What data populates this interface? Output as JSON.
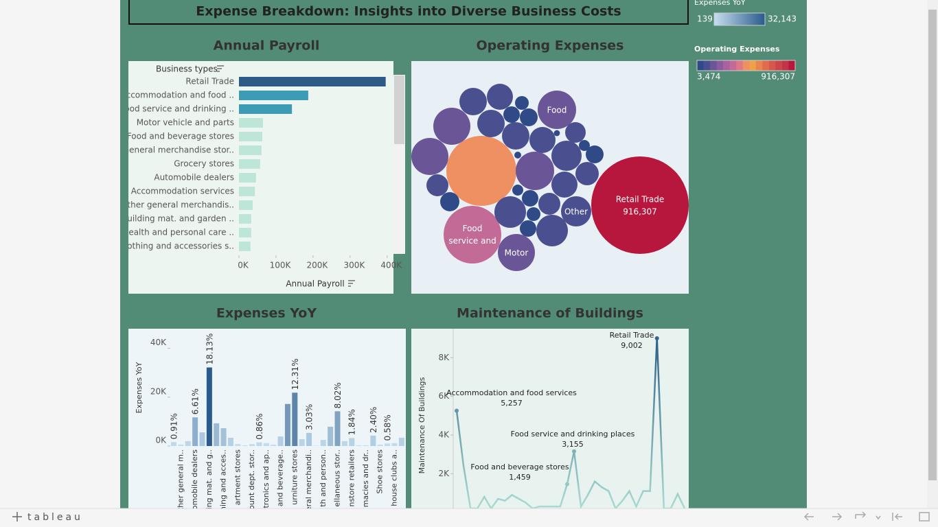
{
  "dashboard": {
    "title": "Expense Breakdown: Insights into Diverse Business Costs",
    "legends": [
      {
        "title": "Expenses YoY",
        "min": 139,
        "max": {
          "value": 32143,
          "label": "32,143"
        },
        "colors": [
          "#c6dfef",
          "#2b5a8c"
        ]
      },
      {
        "title": "Operating Expenses",
        "min": {
          "value": 3474,
          "label": "3,474"
        },
        "max": {
          "value": 916307,
          "label": "916,307"
        },
        "colors": [
          "#2f4a87",
          "#4a4f8f",
          "#6a5597",
          "#8a5c9e",
          "#a8639f",
          "#c36b97",
          "#dc788a",
          "#ef9063",
          "#f0a04a",
          "#e9844f",
          "#e06c4d",
          "#d6574b",
          "#cc4549",
          "#c23546",
          "#b8173d"
        ]
      }
    ]
  },
  "chart_data": [
    {
      "type": "hbar",
      "title": "Annual Payroll",
      "category_label": "Business types",
      "x_label": "Annual Payroll",
      "categories": [
        "Retail Trade",
        "Accommodation and food ..",
        "Food service and drinking ..",
        "Motor vehicle and parts",
        "Food and beverage stores",
        "General merchandise stor..",
        "Grocery stores",
        "Automobile dealers",
        "Accommodation services",
        "Other general merchandis..",
        "Building mat. and garden ..",
        "Health and personal care ..",
        "Clothing and accessories s.."
      ],
      "values": [
        396000,
        187000,
        143000,
        65000,
        63000,
        61000,
        57000,
        46000,
        43000,
        37000,
        33000,
        33000,
        31000
      ],
      "colors": [
        "#2d5a87",
        "#3d9bb6",
        "#3d9bb6",
        "#bde6d8",
        "#bde6d8",
        "#bde6d8",
        "#bde6d8",
        "#bde6d8",
        "#bde6d8",
        "#bde6d8",
        "#bde6d8",
        "#bde6d8",
        "#bde6d8"
      ],
      "xlim": [
        0,
        417000
      ],
      "xticks": [
        {
          "value": 0,
          "label": "0K"
        },
        {
          "value": 100000,
          "label": "100K"
        },
        {
          "value": 200000,
          "label": "200K"
        },
        {
          "value": 300000,
          "label": "300K"
        },
        {
          "value": 400000,
          "label": "400K"
        }
      ]
    },
    {
      "type": "bubble",
      "title": "Operating Expenses",
      "categories": [
        "Retail Trade",
        null,
        "Food service and",
        "Food",
        "Motor",
        "Other",
        null,
        null,
        null,
        null,
        null,
        null,
        null,
        null,
        null,
        null,
        null,
        null,
        null,
        null,
        null,
        null,
        null,
        null,
        null,
        null,
        null,
        null,
        null,
        null,
        null,
        null,
        null,
        null
      ],
      "values": [
        916307,
        472800,
        320600,
        142500,
        132500,
        88000,
        132500,
        132500,
        72700,
        65600,
        72700,
        26200,
        18200,
        30700,
        72700,
        65600,
        142500,
        88000,
        40900,
        11600,
        30700,
        52500,
        65600,
        3474,
        4500,
        46500,
        35600,
        96200,
        11600,
        26200,
        46500,
        18200,
        26200,
        96200
      ],
      "value_labels": [
        "916,307",
        null,
        null,
        null,
        null,
        null,
        null,
        null,
        null,
        null,
        null,
        null,
        null,
        null,
        null,
        null,
        null,
        null,
        null,
        null,
        null,
        null,
        null,
        null,
        null,
        null,
        null,
        null,
        null,
        null,
        null,
        null,
        null,
        null
      ]
    },
    {
      "type": "bar",
      "title": "Expenses YoY",
      "y_label": "Expenses YoY",
      "categories": [
        null,
        "ther general m..",
        null,
        "omobile dealers",
        null,
        "ing mat. and g..",
        null,
        "hing and acces..",
        null,
        "artment stores",
        null,
        "ount dept. stor..",
        null,
        "tronics and ap..",
        null,
        "and beverage..",
        null,
        "urniture stores",
        null,
        "eral merchandi..",
        null,
        "th and person..",
        null,
        "ellaneous stor..",
        null,
        "nstore retailers",
        null,
        "macies and dr..",
        null,
        "Shoe stores",
        null,
        "house clubs a..",
        null
      ],
      "values": [
        1613,
        600,
        2000,
        11719,
        5600,
        32143,
        9300,
        7300,
        3400,
        800,
        300,
        800,
        1525,
        1200,
        600,
        3900,
        17200,
        21825,
        2800,
        5372,
        139,
        2500,
        7900,
        14219,
        2000,
        3262,
        300,
        300,
        4255,
        600,
        1028,
        1200,
        3400
      ],
      "annotations": [
        "0.91%",
        null,
        null,
        "6.61%",
        null,
        "18.13%",
        null,
        null,
        null,
        null,
        null,
        null,
        "0.86%",
        null,
        null,
        null,
        null,
        "12.31%",
        null,
        "3.03%",
        null,
        null,
        null,
        "8.02%",
        null,
        "1.84%",
        null,
        null,
        "2.40%",
        null,
        "0.58%",
        null,
        null
      ],
      "ylim": [
        0,
        48000
      ],
      "yticks": [
        {
          "value": 0,
          "label": "0K"
        },
        {
          "value": 20000,
          "label": "20K"
        },
        {
          "value": 40000,
          "label": "40K"
        }
      ]
    },
    {
      "type": "line",
      "title": "Maintenance of Buildings",
      "y_label": "Maintenance Of Buildings",
      "categories": [
        "Accommodation and food services",
        null,
        null,
        null,
        null,
        null,
        null,
        null,
        null,
        null,
        null,
        null,
        null,
        null,
        null,
        null,
        "Food and beverage stores",
        "Food service and drinking places",
        null,
        null,
        null,
        null,
        null,
        null,
        null,
        null,
        null,
        null,
        null,
        "Retail Trade",
        null,
        null,
        null,
        null
      ],
      "values": [
        5257,
        2400,
        200,
        200,
        800,
        200,
        700,
        600,
        900,
        700,
        500,
        200,
        300,
        300,
        300,
        300,
        1459,
        3155,
        300,
        900,
        1600,
        1300,
        1100,
        200,
        600,
        1100,
        300,
        1100,
        1100,
        9002,
        200,
        200,
        950,
        200
      ],
      "value_labels": [
        "5,257",
        null,
        null,
        null,
        null,
        null,
        null,
        null,
        null,
        null,
        null,
        null,
        null,
        null,
        null,
        null,
        "1,459",
        "3,155",
        null,
        null,
        null,
        null,
        null,
        null,
        null,
        null,
        null,
        null,
        null,
        "9,002",
        null,
        null,
        null,
        null
      ],
      "color_range": [
        "#a8dcd1",
        "#2d5f86"
      ],
      "ylim": [
        0,
        9500
      ],
      "yticks": [
        {
          "value": 2000,
          "label": "2K"
        },
        {
          "value": 4000,
          "label": "4K"
        },
        {
          "value": 6000,
          "label": "6K"
        },
        {
          "value": 8000,
          "label": "8K"
        }
      ]
    }
  ],
  "footer": {
    "logo": "tableau"
  }
}
